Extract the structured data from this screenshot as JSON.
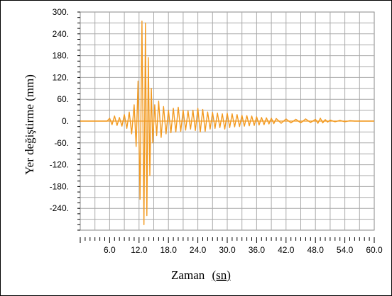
{
  "chart_data": {
    "type": "line",
    "title": "",
    "xlabel": "Zaman",
    "xlabel_unit": "(sn)",
    "ylabel": "Yer değiştirme (mm)",
    "xlim": [
      0,
      60
    ],
    "ylim": [
      -300,
      300
    ],
    "x_tick_values": [
      6,
      12,
      18,
      24,
      30,
      36,
      42,
      48,
      54,
      60
    ],
    "x_tick_labels": [
      "6.0",
      "12.0",
      "18.0",
      "24.0",
      "30.0",
      "36.0",
      "42.0",
      "48.0",
      "54.0",
      "60.0"
    ],
    "y_tick_values": [
      300,
      240,
      180,
      120,
      60,
      0,
      -60,
      -120,
      -180,
      -240
    ],
    "y_tick_labels": [
      "300.",
      "240.",
      "180.",
      "120.",
      "60.",
      "0.",
      "-60.",
      "-120.",
      "-180.",
      "-240."
    ],
    "grid": true,
    "legend": "none",
    "line_color": "#f29a21",
    "series": [
      {
        "x": [
          0,
          5.5,
          6.0,
          6.5,
          7.0,
          7.5,
          8.0,
          8.5,
          9.0,
          9.5,
          10.0,
          10.5,
          11.0,
          11.4,
          11.8,
          12.2,
          12.6,
          13.0,
          13.3,
          13.6,
          13.9,
          14.2,
          14.5,
          14.8,
          15.2,
          15.6,
          16.0,
          16.5,
          17.0,
          17.5,
          18.0,
          18.5,
          19.0,
          19.5,
          20.0,
          20.5,
          21.0,
          21.5,
          22.0,
          22.5,
          23.0,
          23.5,
          24.0,
          24.5,
          25.0,
          25.5,
          26.0,
          26.5,
          27.0,
          27.5,
          28.0,
          28.5,
          29.0,
          29.5,
          30.0,
          30.5,
          31.0,
          31.5,
          32.0,
          32.5,
          33.0,
          33.5,
          34.0,
          34.5,
          35.0,
          35.5,
          36.0,
          36.5,
          37.0,
          37.5,
          38.0,
          38.5,
          39.0,
          39.5,
          40.0,
          41.0,
          42.0,
          43.0,
          44.0,
          45.0,
          46.0,
          47.0,
          48.0,
          48.5,
          49.0,
          49.5,
          50.0,
          50.5,
          51.0,
          52.0,
          53.0,
          54.0,
          55.0,
          56.0,
          57.0,
          58.0,
          60.0
        ],
        "y": [
          0,
          0,
          8,
          -10,
          14,
          -12,
          10,
          -14,
          18,
          -20,
          25,
          -35,
          45,
          -70,
          110,
          -215,
          275,
          -285,
          270,
          -260,
          175,
          -150,
          90,
          -60,
          45,
          -40,
          55,
          -45,
          40,
          -35,
          30,
          -32,
          35,
          -30,
          38,
          -28,
          30,
          -25,
          28,
          -22,
          30,
          -26,
          35,
          -30,
          32,
          -28,
          25,
          -22,
          24,
          -20,
          22,
          -18,
          20,
          -22,
          22,
          -18,
          20,
          -16,
          18,
          -15,
          16,
          -14,
          15,
          -13,
          14,
          -12,
          12,
          -11,
          10,
          -10,
          9,
          -8,
          8,
          -7,
          7,
          -6,
          6,
          -5,
          5,
          -5,
          6,
          -4,
          5,
          -6,
          8,
          -5,
          4,
          -3,
          3,
          -2,
          2,
          -2,
          1,
          0,
          0,
          0,
          0
        ]
      }
    ]
  }
}
